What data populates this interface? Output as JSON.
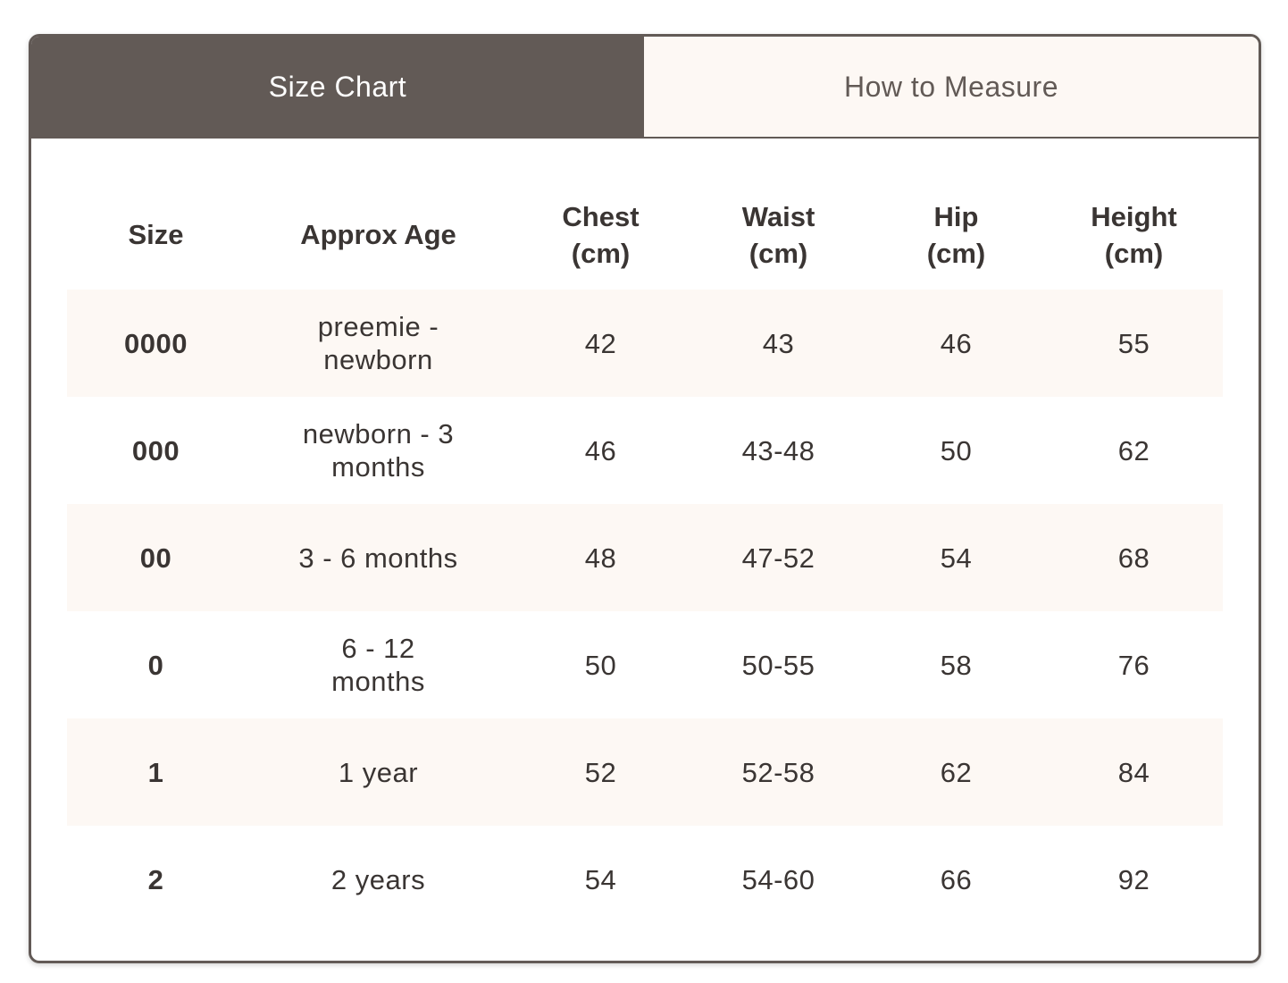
{
  "tabs": {
    "size_chart": "Size Chart",
    "how_to_measure": "How to Measure"
  },
  "colors": {
    "active_tab_bg": "#625a56",
    "inactive_tab_bg": "#fdf8f4",
    "stripe_row_bg": "#fdf8f4",
    "text": "#3a3533"
  },
  "table": {
    "headers": {
      "size": "Size",
      "age": "Approx Age",
      "chest_line1": "Chest",
      "chest_line2": "(cm)",
      "waist_line1": "Waist",
      "waist_line2": "(cm)",
      "hip_line1": "Hip",
      "hip_line2": "(cm)",
      "height_line1": "Height",
      "height_line2": "(cm)"
    },
    "rows": [
      {
        "size": "0000",
        "age": "preemie - newborn",
        "chest": "42",
        "waist": "43",
        "hip": "46",
        "height": "55"
      },
      {
        "size": "000",
        "age": "newborn - 3 months",
        "chest": "46",
        "waist": "43-48",
        "hip": "50",
        "height": "62"
      },
      {
        "size": "00",
        "age": "3 - 6 months",
        "chest": "48",
        "waist": "47-52",
        "hip": "54",
        "height": "68"
      },
      {
        "size": "0",
        "age": "6 - 12 months",
        "chest": "50",
        "waist": "50-55",
        "hip": "58",
        "height": "76"
      },
      {
        "size": "1",
        "age": "1 year",
        "chest": "52",
        "waist": "52-58",
        "hip": "62",
        "height": "84"
      },
      {
        "size": "2",
        "age": "2 years",
        "chest": "54",
        "waist": "54-60",
        "hip": "66",
        "height": "92"
      }
    ]
  }
}
